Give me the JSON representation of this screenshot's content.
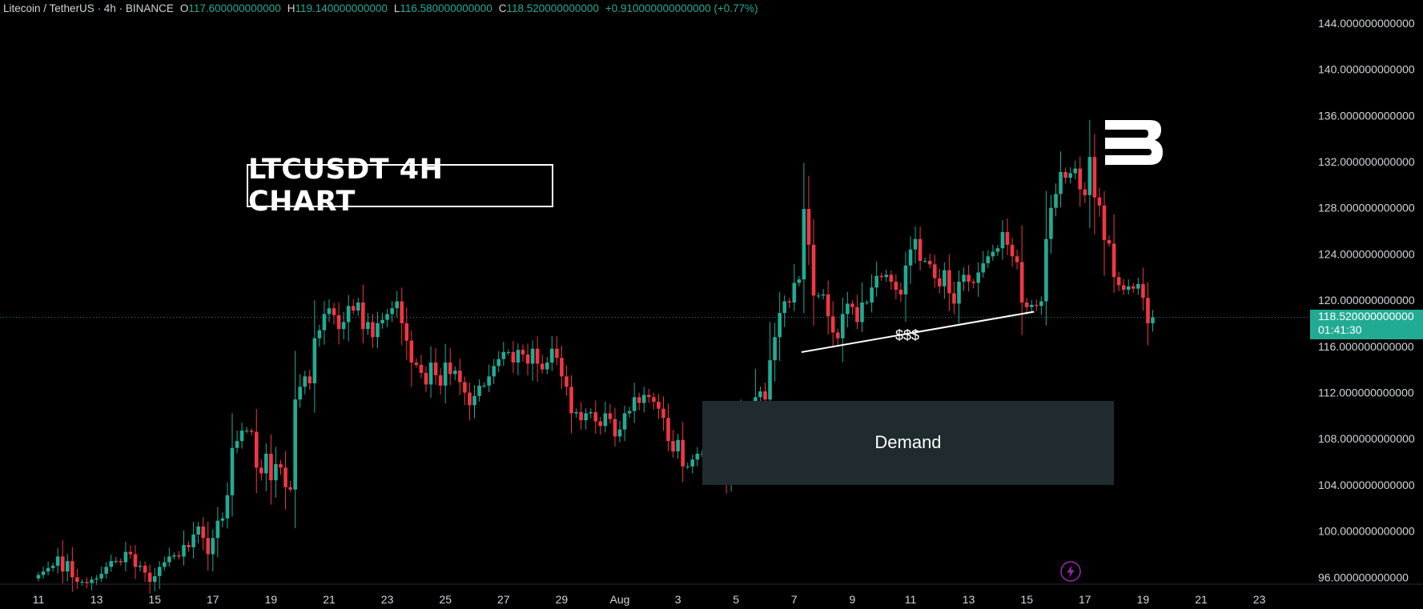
{
  "header": {
    "symbol": "Litecoin / TetherUS · 4h · BINANCE",
    "o_label": "O",
    "o_value": "117.600000000000",
    "h_label": "H",
    "h_value": "119.140000000000",
    "l_label": "L",
    "l_value": "116.580000000000",
    "c_label": "C",
    "c_value": "118.520000000000",
    "change": "+0.910000000000000 (+0.77%)"
  },
  "annotations": {
    "title": "LTCUSDT 4H CHART",
    "demand_label": "Demand",
    "liquidity_label": "$$$",
    "current_price": "118.520000000000",
    "countdown": "01:41:30"
  },
  "colors": {
    "up": "#22ab94",
    "down": "#f23645",
    "demand_zone": "#1f2b2f",
    "background": "#000000"
  },
  "icons": {
    "logo": "brand-b-logo",
    "flash": "lightning-icon"
  },
  "chart_data": {
    "type": "candlestick",
    "title": "LTCUSDT 4H CHART",
    "ylim": [
      94.5,
      146
    ],
    "y_ticks": [
      "144.000000000000",
      "140.000000000000",
      "136.000000000000",
      "132.000000000000",
      "128.000000000000",
      "124.000000000000",
      "120.000000000000",
      "116.000000000000",
      "112.000000000000",
      "108.000000000000",
      "104.000000000000",
      "100.000000000000",
      "96.000000000000"
    ],
    "y_tick_values": [
      144,
      140,
      136,
      132,
      128,
      124,
      120,
      116,
      112,
      108,
      104,
      100,
      96
    ],
    "x_ticks": [
      "11",
      "13",
      "15",
      "17",
      "19",
      "21",
      "23",
      "25",
      "27",
      "29",
      "Aug",
      "3",
      "5",
      "7",
      "9",
      "11",
      "13",
      "15",
      "17",
      "19",
      "21",
      "23"
    ],
    "x_tick_index": [
      0,
      12,
      24,
      36,
      48,
      60,
      72,
      84,
      96,
      108,
      120,
      132,
      144,
      156,
      168,
      180,
      192,
      204,
      216,
      228,
      240,
      252
    ],
    "demand_zone": {
      "from_index": 137,
      "to_index": 222,
      "low": 104.0,
      "high": 111.3
    },
    "liquidity_line": {
      "from_index": 157.5,
      "from_price": 115.5,
      "to_index": 205.5,
      "to_price": 119.0
    },
    "last_price": 118.52,
    "closes": [
      96.2,
      96.5,
      96.8,
      97.0,
      97.8,
      96.5,
      97.4,
      96.0,
      95.6,
      95.6,
      95.5,
      95.8,
      95.9,
      96.3,
      96.9,
      97.4,
      97.4,
      97.3,
      98.2,
      98.0,
      96.9,
      97.0,
      96.4,
      95.6,
      96.1,
      96.9,
      97.3,
      97.8,
      97.9,
      97.8,
      98.8,
      98.6,
      99.7,
      100.4,
      99.4,
      98.0,
      99.4,
      100.9,
      101.1,
      103.1,
      107.2,
      107.8,
      108.7,
      108.7,
      108.6,
      105.5,
      105.0,
      106.7,
      104.4,
      105.8,
      105.5,
      103.8,
      103.6,
      111.4,
      112.5,
      113.4,
      112.8,
      116.7,
      117.4,
      118.8,
      119.3,
      118.7,
      117.5,
      118.1,
      119.5,
      119.1,
      119.8,
      117.5,
      118.1,
      116.8,
      118.0,
      118.3,
      118.8,
      119.3,
      119.9,
      118.0,
      116.5,
      114.6,
      114.4,
      113.7,
      112.7,
      114.6,
      113.5,
      112.6,
      114.6,
      113.6,
      113.9,
      112.9,
      112.0,
      110.9,
      111.7,
      112.6,
      112.6,
      113.4,
      114.3,
      114.9,
      115.5,
      115.5,
      114.6,
      115.7,
      115.3,
      114.5,
      115.8,
      114.5,
      114.0,
      114.6,
      115.8,
      115.0,
      113.4,
      112.5,
      110.2,
      110.3,
      109.6,
      110.2,
      110.3,
      109.5,
      109.1,
      110.2,
      109.7,
      108.2,
      108.8,
      110.2,
      110.4,
      111.6,
      111.1,
      111.8,
      111.6,
      111.2,
      110.6,
      109.8,
      107.8,
      106.9,
      107.9,
      105.6,
      105.6,
      106.2,
      106.7,
      106.7,
      108.0,
      107.9,
      106.3,
      106.1,
      104.8,
      108.2,
      109.3,
      110.3,
      110.0,
      109.0,
      111.6,
      112.1,
      111.4,
      114.8,
      116.8,
      118.9,
      119.9,
      119.8,
      121.5,
      121.8,
      127.9,
      124.8,
      120.4,
      120.4,
      120.5,
      118.6,
      117.2,
      116.7,
      118.8,
      119.7,
      119.4,
      118.1,
      119.8,
      119.8,
      121.1,
      122.1,
      122.0,
      122.2,
      121.6,
      120.9,
      120.5,
      123.0,
      124.4,
      125.3,
      123.4,
      123.4,
      123.1,
      121.9,
      121.2,
      122.6,
      120.6,
      119.7,
      121.6,
      122.2,
      121.6,
      121.5,
      122.4,
      123.2,
      123.8,
      124.2,
      124.5,
      125.9,
      124.8,
      123.8,
      123.3,
      119.8,
      119.4,
      119.6,
      119.5,
      119.9,
      125.3,
      128.0,
      129.2,
      131.1,
      130.6,
      131.0,
      131.4,
      129.6,
      129.1,
      132.4,
      128.9,
      128.2,
      125.2,
      124.9,
      122.0,
      121.3,
      120.9,
      121.2,
      121.0,
      121.4,
      120.2,
      118.0,
      118.5
    ]
  }
}
